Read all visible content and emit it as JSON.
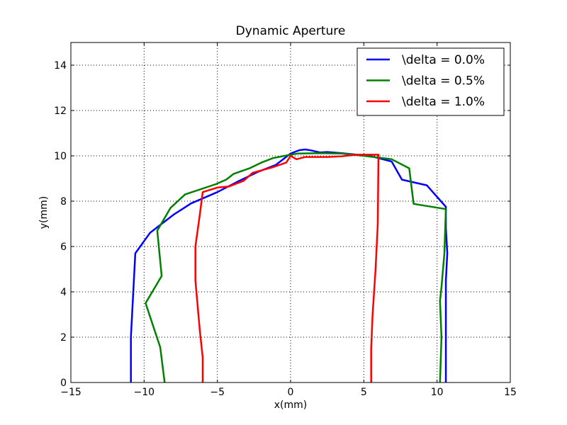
{
  "chart_data": {
    "type": "line",
    "title": "Dynamic Aperture",
    "xlabel": "x(mm)",
    "ylabel": "y(mm)",
    "xlim": [
      -15,
      15
    ],
    "ylim": [
      0,
      15
    ],
    "xticks": [
      -15,
      -10,
      -5,
      0,
      5,
      10,
      15
    ],
    "yticks": [
      0,
      2,
      4,
      6,
      8,
      10,
      12,
      14
    ],
    "xtick_labels": [
      "−15",
      "−10",
      "−5",
      "0",
      "5",
      "10",
      "15"
    ],
    "ytick_labels": [
      "0",
      "2",
      "4",
      "6",
      "8",
      "10",
      "12",
      "14"
    ],
    "grid": true,
    "legend_position": "top-right",
    "series": [
      {
        "name": "\\delta = 0.0%",
        "color": "#0000ff",
        "points": [
          [
            -10.9,
            0
          ],
          [
            -10.9,
            1.1
          ],
          [
            -10.9,
            2.0
          ],
          [
            -10.6,
            5.7
          ],
          [
            -9.6,
            6.6
          ],
          [
            -8.0,
            7.4
          ],
          [
            -6.8,
            7.9
          ],
          [
            -5.0,
            8.4
          ],
          [
            -3.5,
            8.9
          ],
          [
            -2.2,
            9.3
          ],
          [
            -1.0,
            9.6
          ],
          [
            0.0,
            10.1
          ],
          [
            0.6,
            10.25
          ],
          [
            1.0,
            10.28
          ],
          [
            1.4,
            10.24
          ],
          [
            2.0,
            10.15
          ],
          [
            2.5,
            10.17
          ],
          [
            3.5,
            10.12
          ],
          [
            4.5,
            10.05
          ],
          [
            5.5,
            9.98
          ],
          [
            6.9,
            9.75
          ],
          [
            7.6,
            8.95
          ],
          [
            9.3,
            8.7
          ],
          [
            10.6,
            7.75
          ],
          [
            10.6,
            6.8
          ],
          [
            10.7,
            5.7
          ],
          [
            10.6,
            4.5
          ],
          [
            10.6,
            3.5
          ],
          [
            10.6,
            1.5
          ],
          [
            10.6,
            0
          ]
        ]
      },
      {
        "name": "\\delta = 0.5%",
        "color": "#008000",
        "points": [
          [
            -8.6,
            0
          ],
          [
            -8.9,
            1.55
          ],
          [
            -9.9,
            3.5
          ],
          [
            -8.8,
            4.7
          ],
          [
            -9.1,
            6.7
          ],
          [
            -8.2,
            7.7
          ],
          [
            -7.2,
            8.3
          ],
          [
            -5.1,
            8.75
          ],
          [
            -4.4,
            8.95
          ],
          [
            -3.9,
            9.2
          ],
          [
            -2.8,
            9.45
          ],
          [
            -2.0,
            9.7
          ],
          [
            -1.2,
            9.9
          ],
          [
            0.0,
            10.05
          ],
          [
            0.5,
            10.1
          ],
          [
            2.0,
            10.12
          ],
          [
            3.5,
            10.1
          ],
          [
            5.0,
            10.0
          ],
          [
            6.9,
            9.85
          ],
          [
            8.1,
            9.45
          ],
          [
            8.4,
            7.88
          ],
          [
            10.6,
            7.65
          ],
          [
            10.5,
            5.7
          ],
          [
            10.3,
            4.2
          ],
          [
            10.2,
            3.6
          ],
          [
            10.3,
            2.0
          ],
          [
            10.2,
            0
          ]
        ]
      },
      {
        "name": "\\delta = 1.0%",
        "color": "#ff0000",
        "points": [
          [
            -6.0,
            0
          ],
          [
            -6.0,
            1.1
          ],
          [
            -6.2,
            2.3
          ],
          [
            -6.5,
            4.5
          ],
          [
            -6.5,
            6.0
          ],
          [
            -6.2,
            7.4
          ],
          [
            -6.0,
            8.4
          ],
          [
            -5.0,
            8.6
          ],
          [
            -4.2,
            8.65
          ],
          [
            -3.2,
            8.9
          ],
          [
            -2.6,
            9.25
          ],
          [
            -1.2,
            9.5
          ],
          [
            -0.3,
            9.7
          ],
          [
            0.0,
            10.0
          ],
          [
            0.4,
            9.85
          ],
          [
            1.0,
            9.95
          ],
          [
            2.5,
            9.95
          ],
          [
            3.5,
            9.98
          ],
          [
            4.5,
            10.05
          ],
          [
            6.0,
            10.05
          ],
          [
            5.95,
            7.0
          ],
          [
            5.8,
            5.0
          ],
          [
            5.6,
            3.0
          ],
          [
            5.5,
            1.5
          ],
          [
            5.5,
            0
          ]
        ]
      }
    ]
  }
}
